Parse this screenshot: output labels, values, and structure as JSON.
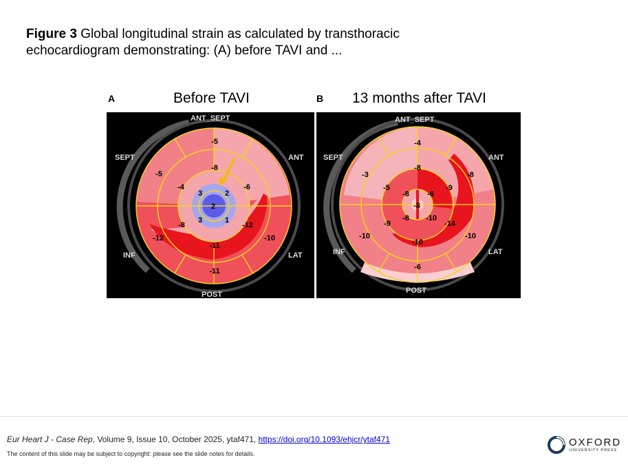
{
  "caption": {
    "label": "Figure 3",
    "text": " Global longitudinal strain as calculated by transthoracic echocardiogram demonstrating: (A) before TAVI and ..."
  },
  "panels": [
    {
      "letter": "A",
      "title": "Before TAVI",
      "wall_labels": {
        "top": "ANT_SEPT",
        "top_left": "SEPT",
        "top_right": "ANT",
        "bottom_left": "INF",
        "bottom_right": "LAT",
        "bottom": "POST"
      },
      "values": [
        "-5",
        "-8",
        "-5",
        "-4",
        "-6",
        "3",
        "2",
        "2",
        "3",
        "1",
        "-8",
        "-12",
        "-12",
        "-11",
        "-10",
        "-11"
      ],
      "arrow": "yellow-arrow"
    },
    {
      "letter": "B",
      "title": "13 months after TAVI",
      "wall_labels": {
        "top": "ANT_SEPT",
        "top_left": "SEPT",
        "top_right": "ANT",
        "bottom_left": "INF",
        "bottom_right": "LAT",
        "bottom": "POST"
      },
      "values": [
        "-4",
        "-8",
        "-8",
        "-3",
        "-5",
        "-9",
        "-8",
        "-6",
        "-8",
        "-8",
        "-10",
        "-9",
        "-14",
        "-10",
        "-10",
        "-10",
        "-6"
      ]
    }
  ],
  "colors": {
    "strong_red": "#e8141e",
    "red": "#f0505a",
    "pink": "#f5a6ad",
    "light_pink": "#f9cfd2",
    "blue": "#5c5ce8",
    "light_blue": "#a6a6f0",
    "yellow": "#f2d21c",
    "ring_gray": "#5a5a5a"
  },
  "footer": {
    "journal": "Eur Heart J - Case Rep",
    "details": ", Volume 9, Issue 10, October 2025, ytaf471, ",
    "doi": "https://doi.org/10.1093/ehjcr/ytaf471",
    "notice": "The content of this slide may be subject to copyright: please see the slide notes for details.",
    "publisher": "OXFORD",
    "publisher_sub": "UNIVERSITY PRESS"
  }
}
